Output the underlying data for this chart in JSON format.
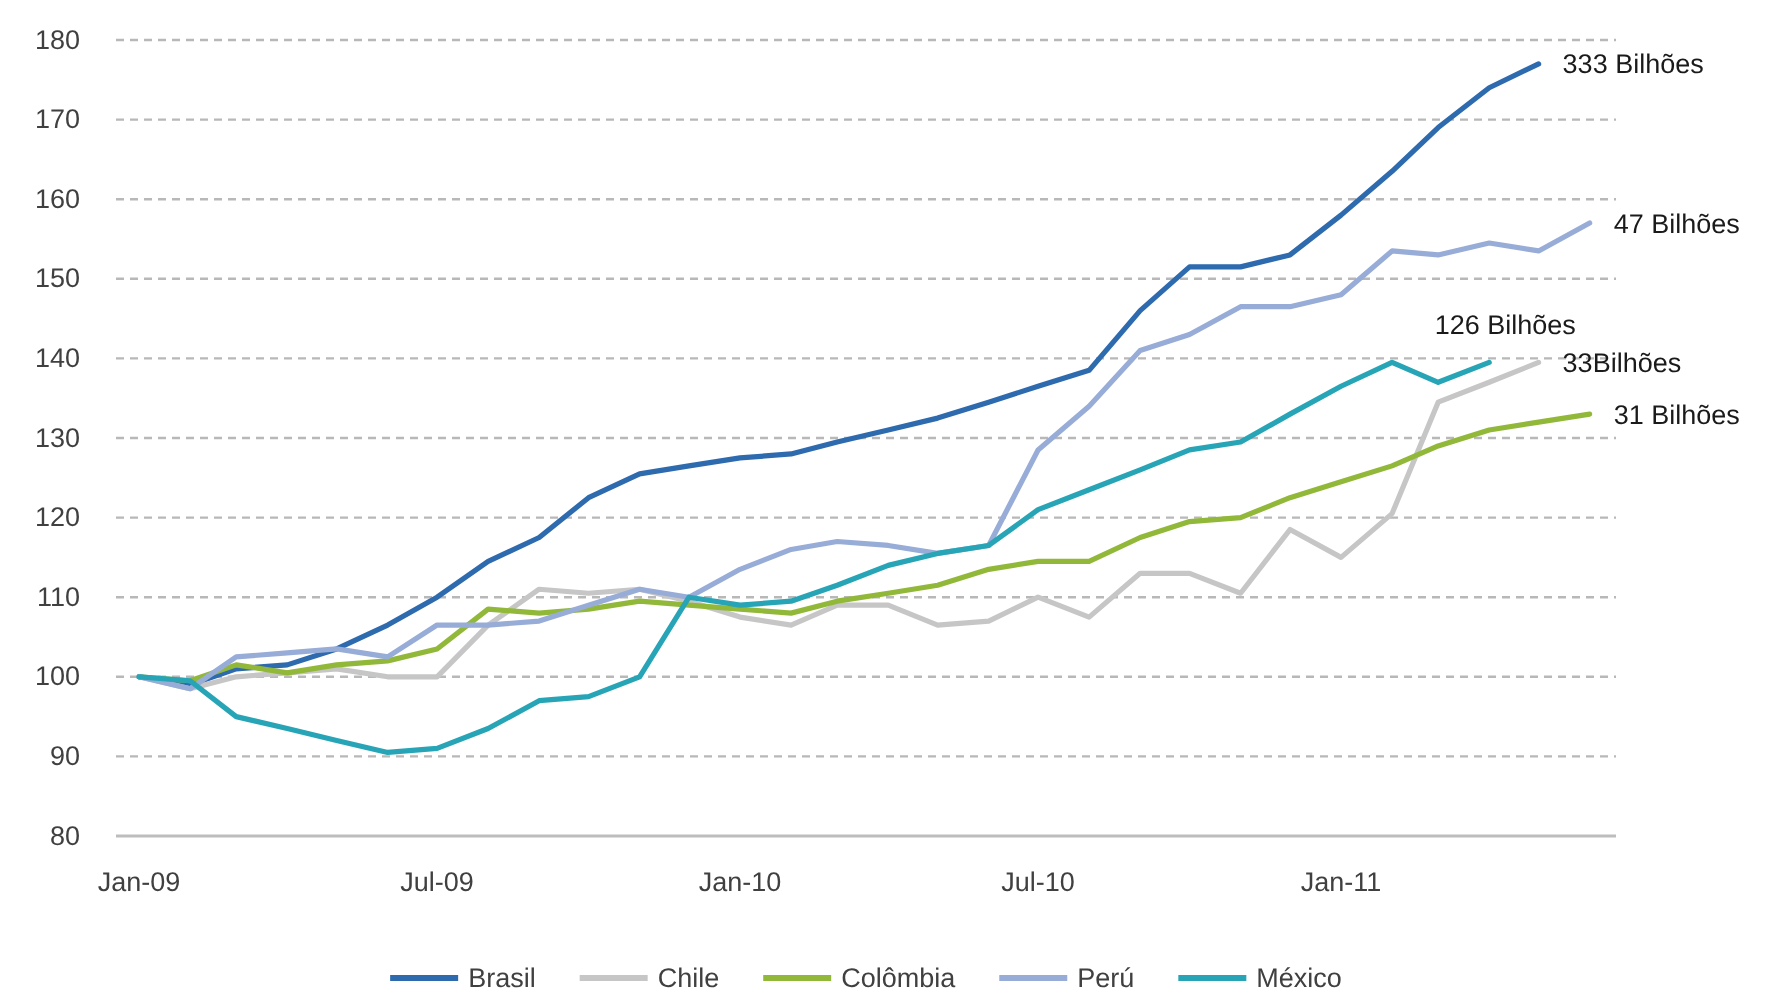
{
  "chart_data": {
    "type": "line",
    "x": [
      "2009-01",
      "2009-02",
      "2009-03",
      "2009-04",
      "2009-05",
      "2009-06",
      "2009-07",
      "2009-08",
      "2009-09",
      "2009-10",
      "2009-11",
      "2009-12",
      "2010-01",
      "2010-02",
      "2010-03",
      "2010-04",
      "2010-05",
      "2010-06",
      "2010-07",
      "2010-08",
      "2010-09",
      "2010-10",
      "2010-11",
      "2010-12",
      "2011-01",
      "2011-02",
      "2011-03",
      "2011-04",
      "2011-05",
      "2011-06"
    ],
    "xlim": [
      "2008-12-18",
      "2011-06-17"
    ],
    "xticks": [
      {
        "value": "2009-01",
        "label": "Jan-09"
      },
      {
        "value": "2009-07",
        "label": "Jul-09"
      },
      {
        "value": "2010-01",
        "label": "Jan-10"
      },
      {
        "value": "2010-07",
        "label": "Jul-10"
      },
      {
        "value": "2011-01",
        "label": "Jan-11"
      }
    ],
    "ylim": [
      80,
      180
    ],
    "yticks": [
      80,
      90,
      100,
      110,
      120,
      130,
      140,
      150,
      160,
      170,
      180
    ],
    "grid": "y",
    "legend": "bottom",
    "series": [
      {
        "name": "Brasil",
        "color": "#2e6aae",
        "values": [
          100,
          99,
          101,
          101.5,
          103.5,
          106.5,
          110,
          114.5,
          117.5,
          122.5,
          125.5,
          126.5,
          127.5,
          128,
          129.5,
          131,
          132.5,
          134.5,
          136.5,
          138.5,
          146,
          151.5,
          151.5,
          153,
          158,
          163.5,
          169,
          174,
          177,
          null
        ]
      },
      {
        "name": "Chile",
        "color": "#c6c6c6",
        "values": [
          100,
          98.5,
          100,
          100.5,
          101,
          100,
          100,
          106.5,
          111,
          110.5,
          111,
          109.5,
          107.5,
          106.5,
          109,
          109,
          106.5,
          107,
          110,
          107.5,
          113,
          113,
          110.5,
          118.5,
          115,
          120.5,
          134.5,
          137,
          139.5,
          null
        ]
      },
      {
        "name": "Colômbia",
        "color": "#92b83a",
        "values": [
          100,
          99.5,
          101.5,
          100.5,
          101.5,
          102,
          103.5,
          108.5,
          108,
          108.5,
          109.5,
          109,
          108.5,
          108,
          109.5,
          110.5,
          111.5,
          113.5,
          114.5,
          114.5,
          117.5,
          119.5,
          120,
          122.5,
          124.5,
          126.5,
          129,
          131,
          132,
          133
        ]
      },
      {
        "name": "Perú",
        "color": "#98acd8",
        "values": [
          100,
          98.5,
          102.5,
          103,
          103.5,
          102.5,
          106.5,
          106.5,
          107,
          109,
          111,
          110,
          113.5,
          116,
          117,
          116.5,
          115.5,
          116.5,
          128.5,
          134,
          141,
          143,
          146.5,
          146.5,
          148,
          153.5,
          153,
          154.5,
          153.5,
          157
        ]
      },
      {
        "name": "México",
        "color": "#27a5b6",
        "values": [
          100,
          99.5,
          95,
          93.5,
          92,
          90.5,
          91,
          93.5,
          97,
          97.5,
          100,
          110,
          109,
          109.5,
          111.5,
          114,
          115.5,
          116.5,
          121,
          123.5,
          126,
          128.5,
          129.5,
          133,
          136.5,
          139.5,
          137,
          139.5,
          null,
          null
        ]
      }
    ],
    "annotations": [
      {
        "text": "333 Bilhões",
        "x": "2011-05",
        "y": 177
      },
      {
        "text": "47 Bilhões",
        "x": "2011-06",
        "y": 157
      },
      {
        "text": "126 Bilhões",
        "x": "2011-04",
        "y": 139.5
      },
      {
        "text": "33Bilhões",
        "x": "2011-05",
        "y": 139.5
      },
      {
        "text": "31 Bilhões",
        "x": "2011-06",
        "y": 133
      }
    ]
  }
}
